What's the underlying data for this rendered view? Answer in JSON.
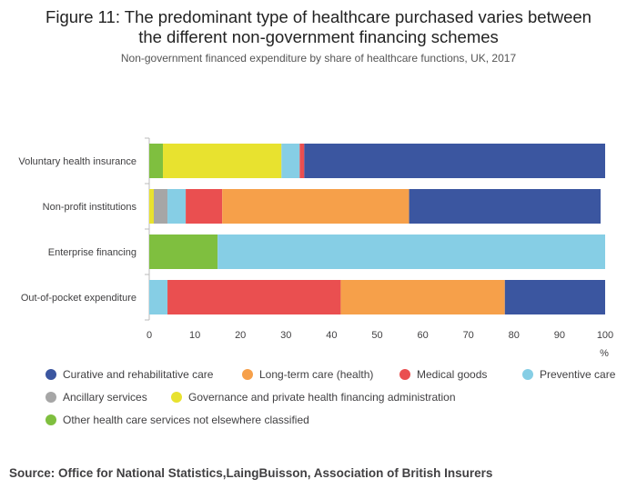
{
  "title": "Figure 11: The predominant type of healthcare purchased varies between the different non-government financing schemes",
  "subtitle": "Non-government financed expenditure by share of healthcare functions, UK, 2017",
  "source": "Source: Office for National Statistics,LaingBuisson, Association of British Insurers",
  "chart_data": {
    "type": "bar",
    "orientation": "horizontal",
    "stacked": true,
    "categories": [
      "Voluntary health insurance",
      "Non-profit institutions",
      "Enterprise financing",
      "Out-of-pocket expenditure"
    ],
    "xlabel": "%",
    "xlim": [
      0,
      100
    ],
    "x_ticks": [
      0,
      10,
      20,
      30,
      40,
      50,
      60,
      70,
      80,
      90,
      100
    ],
    "grid": false,
    "legend_position": "bottom",
    "series": [
      {
        "name": "Other health care services not elsewhere classified",
        "color": "#7fbf3f",
        "values": [
          3,
          0,
          15,
          0
        ]
      },
      {
        "name": "Governance and private health financing administration",
        "color": "#e8e22f",
        "values": [
          26,
          1,
          0,
          0
        ]
      },
      {
        "name": "Ancillary services",
        "color": "#a6a6a6",
        "values": [
          0,
          3,
          0,
          0
        ]
      },
      {
        "name": "Preventive care",
        "color": "#86cee5",
        "values": [
          4,
          4,
          85,
          4
        ]
      },
      {
        "name": "Medical goods",
        "color": "#ea4f50",
        "values": [
          1,
          8,
          0,
          38
        ]
      },
      {
        "name": "Long-term care (health)",
        "color": "#f6a04a",
        "values": [
          0,
          41,
          0,
          36
        ]
      },
      {
        "name": "Curative and rehabilitative care",
        "color": "#3b56a0",
        "values": [
          66,
          42,
          0,
          22
        ]
      }
    ],
    "legend_order": [
      "Curative and rehabilitative care",
      "Long-term care (health)",
      "Medical goods",
      "Preventive care",
      "Ancillary services",
      "Governance and private health financing administration",
      "Other health care services not elsewhere classified"
    ]
  }
}
